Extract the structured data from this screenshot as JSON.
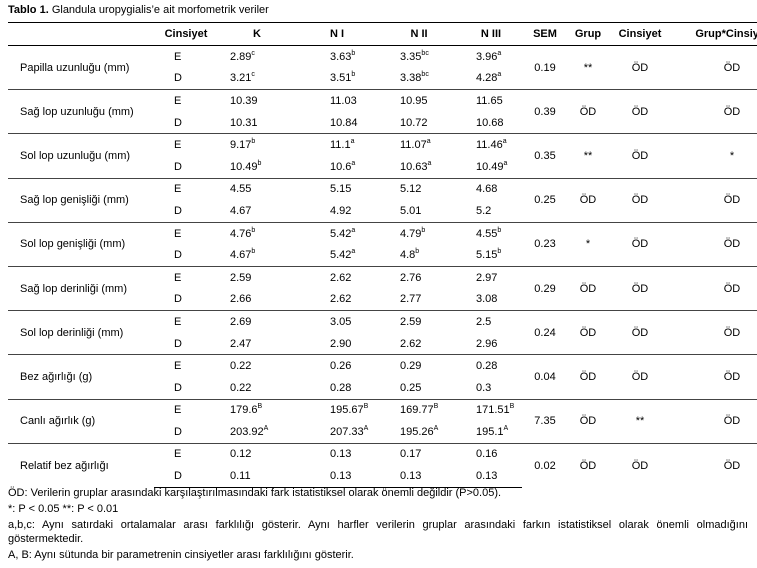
{
  "caption": {
    "label": "Tablo 1.",
    "text": "Glandula uropygialis’e ait morfometrik veriler"
  },
  "headers": [
    "",
    "Cinsiyet",
    "K",
    "N I",
    "N II",
    "N III",
    "SEM",
    "Grup",
    "Cinsiyet",
    "Grup*Cinsiyet"
  ],
  "rows": [
    {
      "param": "Papilla uzunluğu (mm)",
      "sem": "0.19",
      "grup": "**",
      "cinsiyet": "ÖD",
      "gc": "ÖD",
      "E": [
        [
          "2.89",
          "c"
        ],
        [
          "3.63",
          "b"
        ],
        [
          "3.35",
          "bc"
        ],
        [
          "3.96",
          "a"
        ]
      ],
      "D": [
        [
          "3.21",
          "c"
        ],
        [
          "3.51",
          "b"
        ],
        [
          "3.38",
          "bc"
        ],
        [
          "4.28",
          "a"
        ]
      ]
    },
    {
      "param": "Sağ lop uzunluğu (mm)",
      "sem": "0.39",
      "grup": "ÖD",
      "cinsiyet": "ÖD",
      "gc": "ÖD",
      "E": [
        [
          "10.39",
          ""
        ],
        [
          "11.03",
          ""
        ],
        [
          "10.95",
          ""
        ],
        [
          "11.65",
          ""
        ]
      ],
      "D": [
        [
          "10.31",
          ""
        ],
        [
          "10.84",
          ""
        ],
        [
          "10.72",
          ""
        ],
        [
          "10.68",
          ""
        ]
      ]
    },
    {
      "param": "Sol lop uzunluğu (mm)",
      "sem": "0.35",
      "grup": "**",
      "cinsiyet": "ÖD",
      "gc": "*",
      "E": [
        [
          "9.17",
          "b"
        ],
        [
          "11.1",
          "a"
        ],
        [
          "11.07",
          "a"
        ],
        [
          "11.46",
          "a"
        ]
      ],
      "D": [
        [
          "10.49",
          "b"
        ],
        [
          "10.6",
          "a"
        ],
        [
          "10.63",
          "a"
        ],
        [
          "10.49",
          "a"
        ]
      ]
    },
    {
      "param": "Sağ lop genişliği (mm)",
      "sem": "0.25",
      "grup": "ÖD",
      "cinsiyet": "ÖD",
      "gc": "ÖD",
      "E": [
        [
          "4.55",
          ""
        ],
        [
          "5.15",
          ""
        ],
        [
          "5.12",
          ""
        ],
        [
          "4.68",
          ""
        ]
      ],
      "D": [
        [
          "4.67",
          ""
        ],
        [
          "4.92",
          ""
        ],
        [
          "5.01",
          ""
        ],
        [
          "5.2",
          ""
        ]
      ]
    },
    {
      "param": "Sol lop genişliği (mm)",
      "sem": "0.23",
      "grup": "*",
      "cinsiyet": "ÖD",
      "gc": "ÖD",
      "E": [
        [
          "4.76",
          "b"
        ],
        [
          "5.42",
          "a"
        ],
        [
          "4.79",
          "b"
        ],
        [
          "4.55",
          "b"
        ]
      ],
      "D": [
        [
          "4.67",
          "b"
        ],
        [
          "5.42",
          "a"
        ],
        [
          "4.8",
          "b"
        ],
        [
          "5.15",
          "b"
        ]
      ]
    },
    {
      "param": "Sağ lop derinliği (mm)",
      "sem": "0.29",
      "grup": "ÖD",
      "cinsiyet": "ÖD",
      "gc": "ÖD",
      "E": [
        [
          "2.59",
          ""
        ],
        [
          "2.62",
          ""
        ],
        [
          "2.76",
          ""
        ],
        [
          "2.97",
          ""
        ]
      ],
      "D": [
        [
          "2.66",
          ""
        ],
        [
          "2.62",
          ""
        ],
        [
          "2.77",
          ""
        ],
        [
          "3.08",
          ""
        ]
      ]
    },
    {
      "param": "Sol lop derinliği (mm)",
      "sem": "0.24",
      "grup": "ÖD",
      "cinsiyet": "ÖD",
      "gc": "ÖD",
      "E": [
        [
          "2.69",
          ""
        ],
        [
          "3.05",
          ""
        ],
        [
          "2.59",
          ""
        ],
        [
          "2.5",
          ""
        ]
      ],
      "D": [
        [
          "2.47",
          ""
        ],
        [
          "2.90",
          ""
        ],
        [
          "2.62",
          ""
        ],
        [
          "2.96",
          ""
        ]
      ]
    },
    {
      "param": "Bez ağırlığı (g)",
      "sem": "0.04",
      "grup": "ÖD",
      "cinsiyet": "ÖD",
      "gc": "ÖD",
      "E": [
        [
          "0.22",
          ""
        ],
        [
          "0.26",
          ""
        ],
        [
          "0.29",
          ""
        ],
        [
          "0.28",
          ""
        ]
      ],
      "D": [
        [
          "0.22",
          ""
        ],
        [
          "0.28",
          ""
        ],
        [
          "0.25",
          ""
        ],
        [
          "0.3",
          ""
        ]
      ]
    },
    {
      "param": "Canlı ağırlık (g)",
      "sem": "7.35",
      "grup": "ÖD",
      "cinsiyet": "**",
      "gc": "ÖD",
      "E": [
        [
          "179.6",
          "B"
        ],
        [
          "195.67",
          "B"
        ],
        [
          "169.77",
          "B"
        ],
        [
          "171.51",
          "B"
        ]
      ],
      "D": [
        [
          "203.92",
          "A"
        ],
        [
          "207.33",
          "A"
        ],
        [
          "195.26",
          "A"
        ],
        [
          "195.1",
          "A"
        ]
      ]
    },
    {
      "param": "Relatif bez ağırlığı",
      "sem": "0.02",
      "grup": "ÖD",
      "cinsiyet": "ÖD",
      "gc": "ÖD",
      "E": [
        [
          "0.12",
          ""
        ],
        [
          "0.13",
          ""
        ],
        [
          "0.17",
          ""
        ],
        [
          "0.16",
          ""
        ]
      ],
      "D": [
        [
          "0.11",
          ""
        ],
        [
          "0.13",
          ""
        ],
        [
          "0.13",
          ""
        ],
        [
          "0.13",
          ""
        ]
      ]
    }
  ],
  "sex_labels": {
    "E": "E",
    "D": "D"
  },
  "notes": [
    "ÖD: Verilerin gruplar arasındaki karşılaştırılmasındaki fark istatistiksel olarak önemli değildir (P>0.05).",
    "*: P < 0.05  **: P < 0.01",
    "a,b,c: Aynı satırdaki ortalamalar arası farklılığı gösterir. Aynı harfler verilerin gruplar arasındaki farkın istatistiksel olarak önemli olmadığını göstermektedir.",
    "A, B: Aynı sütunda bir parametrenin cinsiyetler arası farklılığını gösterir."
  ]
}
